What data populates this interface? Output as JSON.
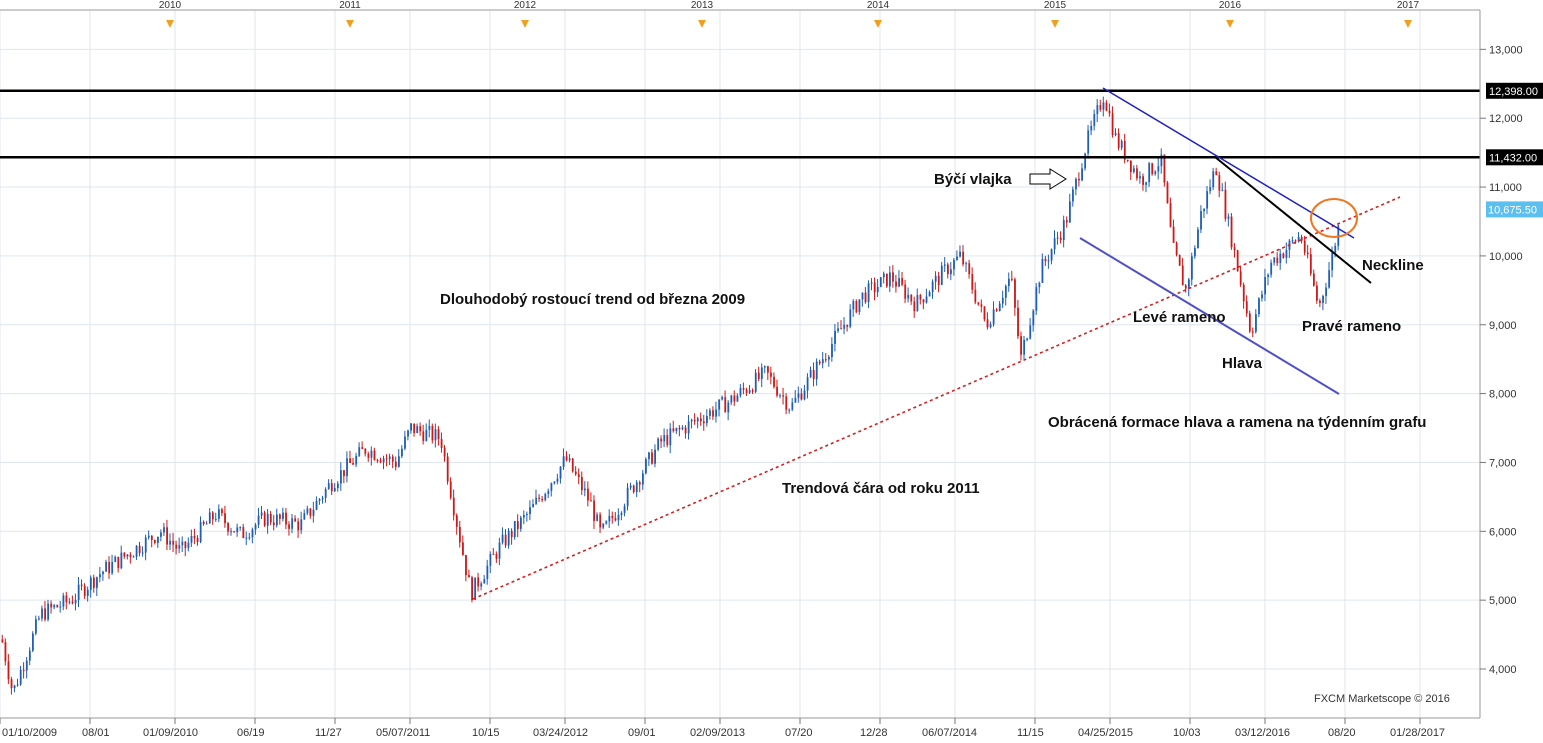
{
  "chart_data": {
    "type": "candlestick",
    "title": "",
    "instrument_note": "",
    "colors": {
      "up": "#1f5fb3",
      "down": "#d01818",
      "resistance": "#000000",
      "trendline": "#d42020",
      "channel": "#2020c0",
      "channel_lower": "#5050c8",
      "neckline": "#000000",
      "highlight": "#ee7722",
      "price_tag": "#5bc0f0"
    },
    "ylim": [
      3600,
      13350
    ],
    "y_ticks": [
      "4,000",
      "5,000",
      "6,000",
      "7,000",
      "8,000",
      "9,000",
      "10,000",
      "11,000",
      "12,000",
      "13,000"
    ],
    "x_ticks": [
      "01/10/2009",
      "08/01",
      "01/09/2010",
      "06/19",
      "11/27",
      "05/07/2011",
      "10/15",
      "03/24/2012",
      "09/01",
      "02/09/2013",
      "07/20",
      "12/28",
      "06/07/2014",
      "11/15",
      "04/25/2015",
      "10/03",
      "03/12/2016",
      "08/20",
      "01/28/2017"
    ],
    "year_ticks": [
      "2010",
      "2011",
      "2012",
      "2013",
      "2014",
      "2015",
      "2016",
      "2017"
    ],
    "price_levels": [
      {
        "label": "12,398.00",
        "value": 12398
      },
      {
        "label": "11,432.00",
        "value": 11432
      }
    ],
    "current_price": {
      "label": "10,675.50",
      "value": 10675.5
    },
    "series_path": [
      [
        0,
        4500
      ],
      [
        12,
        3650
      ],
      [
        40,
        4800
      ],
      [
        70,
        5000
      ],
      [
        100,
        5400
      ],
      [
        135,
        5750
      ],
      [
        160,
        6000
      ],
      [
        180,
        5700
      ],
      [
        215,
        6250
      ],
      [
        240,
        5950
      ],
      [
        265,
        6200
      ],
      [
        300,
        6100
      ],
      [
        330,
        6700
      ],
      [
        365,
        7200
      ],
      [
        395,
        7000
      ],
      [
        410,
        7500
      ],
      [
        440,
        7350
      ],
      [
        455,
        6200
      ],
      [
        470,
        5100
      ],
      [
        500,
        5800
      ],
      [
        530,
        6300
      ],
      [
        565,
        7050
      ],
      [
        590,
        6400
      ],
      [
        600,
        5950
      ],
      [
        630,
        6600
      ],
      [
        660,
        7300
      ],
      [
        700,
        7650
      ],
      [
        730,
        7900
      ],
      [
        765,
        8300
      ],
      [
        790,
        7800
      ],
      [
        830,
        8700
      ],
      [
        860,
        9400
      ],
      [
        890,
        9700
      ],
      [
        915,
        9300
      ],
      [
        945,
        9800
      ],
      [
        960,
        10000
      ],
      [
        985,
        9000
      ],
      [
        1010,
        9700
      ],
      [
        1020,
        8500
      ],
      [
        1040,
        9800
      ],
      [
        1065,
        10500
      ],
      [
        1085,
        11600
      ],
      [
        1103,
        12350
      ],
      [
        1115,
        11700
      ],
      [
        1140,
        11100
      ],
      [
        1160,
        11400
      ],
      [
        1172,
        10100
      ],
      [
        1185,
        9500
      ],
      [
        1200,
        10600
      ],
      [
        1215,
        11300
      ],
      [
        1230,
        10300
      ],
      [
        1250,
        8900
      ],
      [
        1270,
        9900
      ],
      [
        1300,
        10300
      ],
      [
        1318,
        9250
      ],
      [
        1330,
        9900
      ],
      [
        1340,
        10600
      ]
    ],
    "annotation_labels": {
      "bull_flag": "Býčí vlajka",
      "long_term_trend": "Dlouhodobý rostoucí trend od března 2009",
      "trendline_2011": "Trendová čára od roku 2011",
      "left_shoulder": "Levé rameno",
      "head": "Hlava",
      "right_shoulder": "Pravé rameno",
      "neckline": "Neckline",
      "pattern": "Obrácená formace hlava a ramena na týdenním grafu"
    },
    "copyright": "FXCM Marketscope © 2016",
    "grid": true,
    "legend": "none"
  }
}
